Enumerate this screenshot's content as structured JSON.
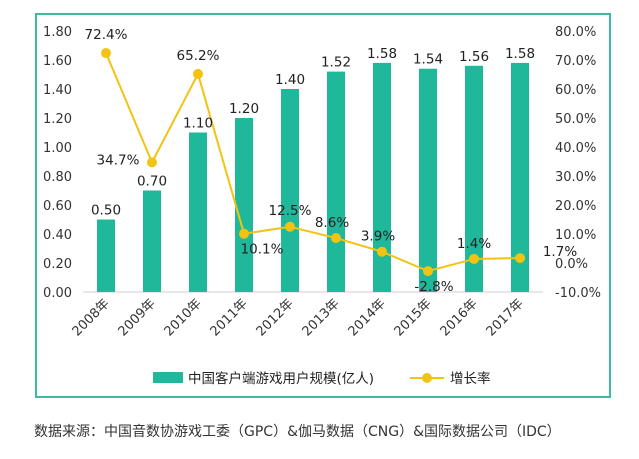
{
  "chart_data": {
    "type": "bar",
    "categories": [
      "2008年",
      "2009年",
      "2010年",
      "2011年",
      "2012年",
      "2013年",
      "2014年",
      "2015年",
      "2016年",
      "2017年"
    ],
    "series": [
      {
        "name": "中国客户端游戏用户规模(亿人)",
        "kind": "bar",
        "axis": "left",
        "color": "#1fb89a",
        "values": [
          0.5,
          0.7,
          1.1,
          1.2,
          1.4,
          1.52,
          1.58,
          1.54,
          1.56,
          1.58
        ],
        "labels": [
          "0.50",
          "0.70",
          "1.10",
          "1.20",
          "1.40",
          "1.52",
          "1.58",
          "1.54",
          "1.56",
          "1.58"
        ]
      },
      {
        "name": "增长率",
        "kind": "line",
        "axis": "right",
        "color": "#f2c313",
        "values": [
          72.4,
          34.7,
          65.2,
          10.1,
          12.5,
          8.6,
          3.9,
          -2.8,
          1.4,
          1.7
        ],
        "labels": [
          "72.4%",
          "34.7%",
          "65.2%",
          "10.1%",
          "12.5%",
          "8.6%",
          "3.9%",
          "-2.8%",
          "1.4%",
          "1.7%"
        ]
      }
    ],
    "left_axis": {
      "ylim": [
        0,
        1.8
      ],
      "ticks": [
        "0.00",
        "0.20",
        "0.40",
        "0.60",
        "0.80",
        "1.00",
        "1.20",
        "1.40",
        "1.60",
        "1.80"
      ]
    },
    "right_axis": {
      "ylim": [
        -10,
        80
      ],
      "ticks": [
        "-10.0%",
        "0.0%",
        "10.0%",
        "20.0%",
        "30.0%",
        "40.0%",
        "50.0%",
        "60.0%",
        "70.0%",
        "80.0%"
      ]
    },
    "grid": false,
    "legend_position": "bottom"
  },
  "source": "数据来源：中国音数协游戏工委（GPC）&伽马数据（CNG）&国际数据公司（IDC）"
}
